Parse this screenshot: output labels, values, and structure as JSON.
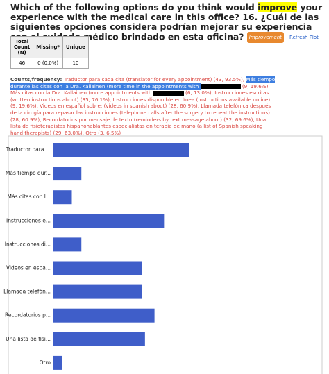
{
  "title": {
    "before": "Which of the following options do you think would ",
    "highlight": "improve",
    "after": " your experience with the medical care in this office? 16. ¿Cuál de las siguientes opciones considera podrían mejorar su experiencia con el cuidado médico brindado en esta oficina?",
    "tag": "Improvement",
    "link": "Refresh Plot"
  },
  "table": {
    "headers": [
      "Total Count (N)",
      "Missing*",
      "Unique"
    ],
    "rows": [
      [
        "46",
        "0 (0.0%)",
        "10"
      ]
    ]
  },
  "frequency": {
    "label": "Counts/frequency:",
    "parts": [
      " Traductor para cada cita (translator for every appointment) (43, 93.5%), ",
      "Más tiempo durante las citas con la Dra. Kallainen (more time in the appointments with ",
      " (9, 19.6%), Más citas con la Dra. Kallainen (more appointments with ",
      " (6, 13.0%), Instrucciones escritas (written instructions about) (35, 76.1%), Instrucciones disponible en línea (instructions available online) (9, 19.6%), Videos en español sobre: (videos in spanish about) (28, 60.9%), Llamada telefónica después de la cirugía para repasar las instrucciones (telephone calls after the surgery to repeat the instructions) (28, 60.9%), Recordatorios por mensaje de texto (reminders by text message about) (32, 69.6%), Una lista de fisioterapistas hispanohablantes especialistas en terapia de mano (a list of Spanish speaking hand therapists) (29, 63.0%), Otro (3, 6.5%)"
    ]
  },
  "chart_data": {
    "type": "hbar",
    "color": "#3f5ec9",
    "categories": [
      "Traductor para ...",
      "Más tiempo dur...",
      "Más citas con l...",
      "Instrucciones e...",
      "Instrucciones di...",
      "Videos en espa...",
      "Llamada telefón...",
      "Recordatorios p...",
      "Una lista de fisi...",
      "Otro"
    ],
    "values": [
      43,
      9,
      6,
      35,
      9,
      28,
      28,
      32,
      29,
      3
    ]
  }
}
